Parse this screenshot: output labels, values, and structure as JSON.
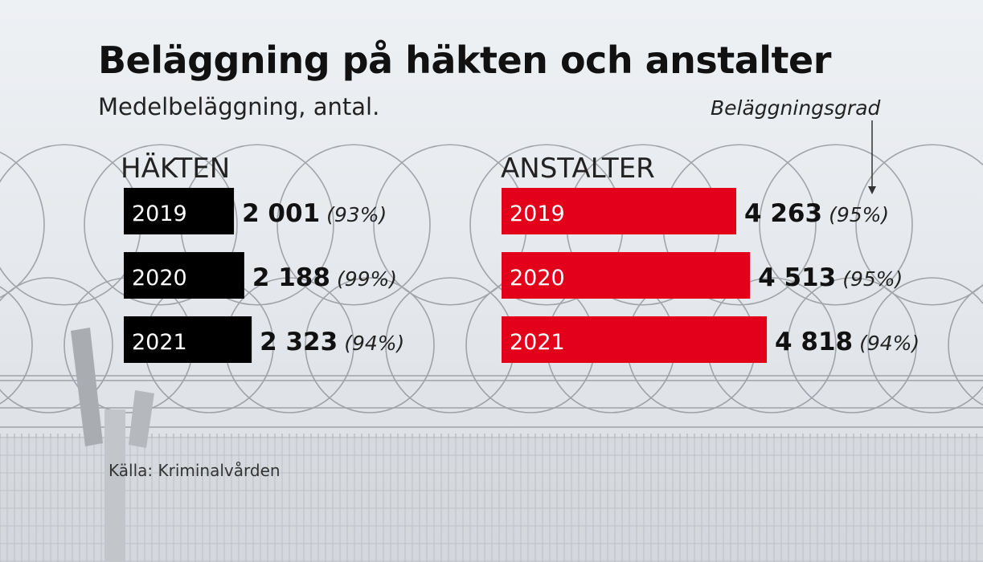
{
  "title": "Beläggning på häkten och anstalter",
  "subtitle": "Medelbeläggning, antal.",
  "annotation": "Beläggningsgrad",
  "source": "Källa: Kriminalvården",
  "colors": {
    "hakten": "#000000",
    "anstalter": "#e3001b",
    "text": "#111111",
    "label": "#ffffff"
  },
  "chart_data": [
    {
      "type": "bar",
      "orientation": "horizontal",
      "title": "HÄKTEN",
      "categories": [
        "2019",
        "2020",
        "2021"
      ],
      "values": [
        2001,
        2188,
        2323
      ],
      "value_labels": [
        "2 001",
        "2 188",
        "2 323"
      ],
      "rate_labels": [
        "(93%)",
        "(99%)",
        "(94%)"
      ],
      "color": "#000000"
    },
    {
      "type": "bar",
      "orientation": "horizontal",
      "title": "ANSTALTER",
      "categories": [
        "2019",
        "2020",
        "2021"
      ],
      "values": [
        4263,
        4513,
        4818
      ],
      "value_labels": [
        "4 263",
        "4 513",
        "4 818"
      ],
      "rate_labels": [
        "(95%)",
        "(95%)",
        "(94%)"
      ],
      "color": "#e3001b"
    }
  ]
}
